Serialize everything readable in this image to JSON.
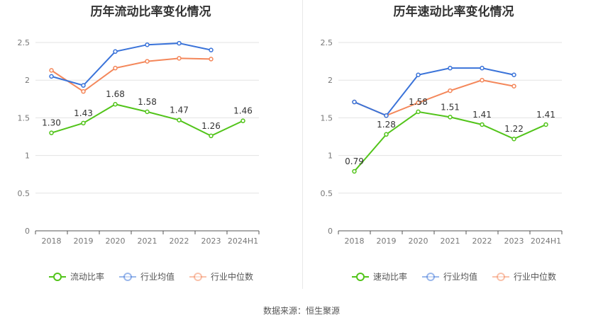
{
  "footer": {
    "source_label": "数据来源：",
    "source_name": "恒生聚源"
  },
  "chart_data": [
    {
      "id": "left",
      "type": "line",
      "title": "历年流动比率变化情况",
      "categories": [
        "2018",
        "2019",
        "2020",
        "2021",
        "2022",
        "2023",
        "2024H1"
      ],
      "ylim": [
        0,
        2.5
      ],
      "yticks": [
        "0",
        "0.5",
        "1",
        "1.5",
        "2",
        "2.5"
      ],
      "series": [
        {
          "name": "流动比率",
          "color": "#52c41a",
          "values": [
            1.3,
            1.43,
            1.68,
            1.58,
            1.47,
            1.26,
            1.46
          ],
          "labels": [
            "1.30",
            "1.43",
            "1.68",
            "1.58",
            "1.47",
            "1.26",
            "1.46"
          ]
        },
        {
          "name": "行业均值",
          "color": "#3a73d9",
          "values": [
            2.05,
            1.93,
            2.38,
            2.47,
            2.49,
            2.4,
            null
          ]
        },
        {
          "name": "行业中位数",
          "color": "#f4875a",
          "values": [
            2.13,
            1.85,
            2.16,
            2.25,
            2.29,
            2.28,
            null
          ]
        }
      ]
    },
    {
      "id": "right",
      "type": "line",
      "title": "历年速动比率变化情况",
      "categories": [
        "2018",
        "2019",
        "2020",
        "2021",
        "2022",
        "2023",
        "2024H1"
      ],
      "ylim": [
        0,
        2.5
      ],
      "yticks": [
        "0",
        "0.5",
        "1",
        "1.5",
        "2",
        "2.5"
      ],
      "series": [
        {
          "name": "速动比率",
          "color": "#52c41a",
          "values": [
            0.79,
            1.28,
            1.58,
            1.51,
            1.41,
            1.22,
            1.41
          ],
          "labels": [
            "0.79",
            "1.28",
            "1.58",
            "1.51",
            "1.41",
            "1.22",
            "1.41"
          ]
        },
        {
          "name": "行业均值",
          "color": "#3a73d9",
          "values": [
            1.71,
            1.53,
            2.07,
            2.16,
            2.16,
            2.07,
            null
          ]
        },
        {
          "name": "行业中位数",
          "color": "#f4875a",
          "values": [
            1.71,
            1.53,
            1.7,
            1.86,
            2.0,
            1.92,
            null
          ]
        }
      ]
    }
  ]
}
